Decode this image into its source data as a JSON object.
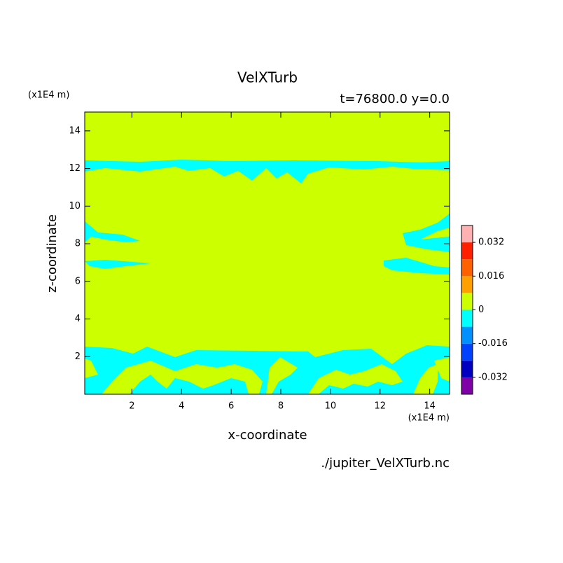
{
  "chart_data": {
    "type": "contour",
    "title": "VelXTurb",
    "subtitle": "t=76800.0 y=0.0",
    "x_label": "x-coordinate",
    "y_label": "z-coordinate",
    "x_unit": "(x1E4 m)",
    "y_unit": "(x1E4 m)",
    "source": "./jupiter_VelXTurb.nc",
    "xlim": [
      0.1,
      14.8
    ],
    "ylim": [
      0,
      15
    ],
    "xticks": [
      2,
      4,
      6,
      8,
      10,
      12,
      14
    ],
    "yticks": [
      2,
      4,
      6,
      8,
      10,
      12,
      14
    ],
    "colorbar": {
      "clim": [
        -0.04,
        0.04
      ],
      "colors": [
        "#8000a8",
        "#0000c0",
        "#0040ff",
        "#0090ff",
        "#00ffff",
        "#ccff00",
        "#ffa000",
        "#ff6000",
        "#ff2000",
        "#ffb0b0"
      ],
      "ticks": [
        -0.032,
        -0.016,
        0,
        0.016,
        0.032
      ]
    },
    "background_color": "#ccff00",
    "region_color": "#00ffff"
  }
}
